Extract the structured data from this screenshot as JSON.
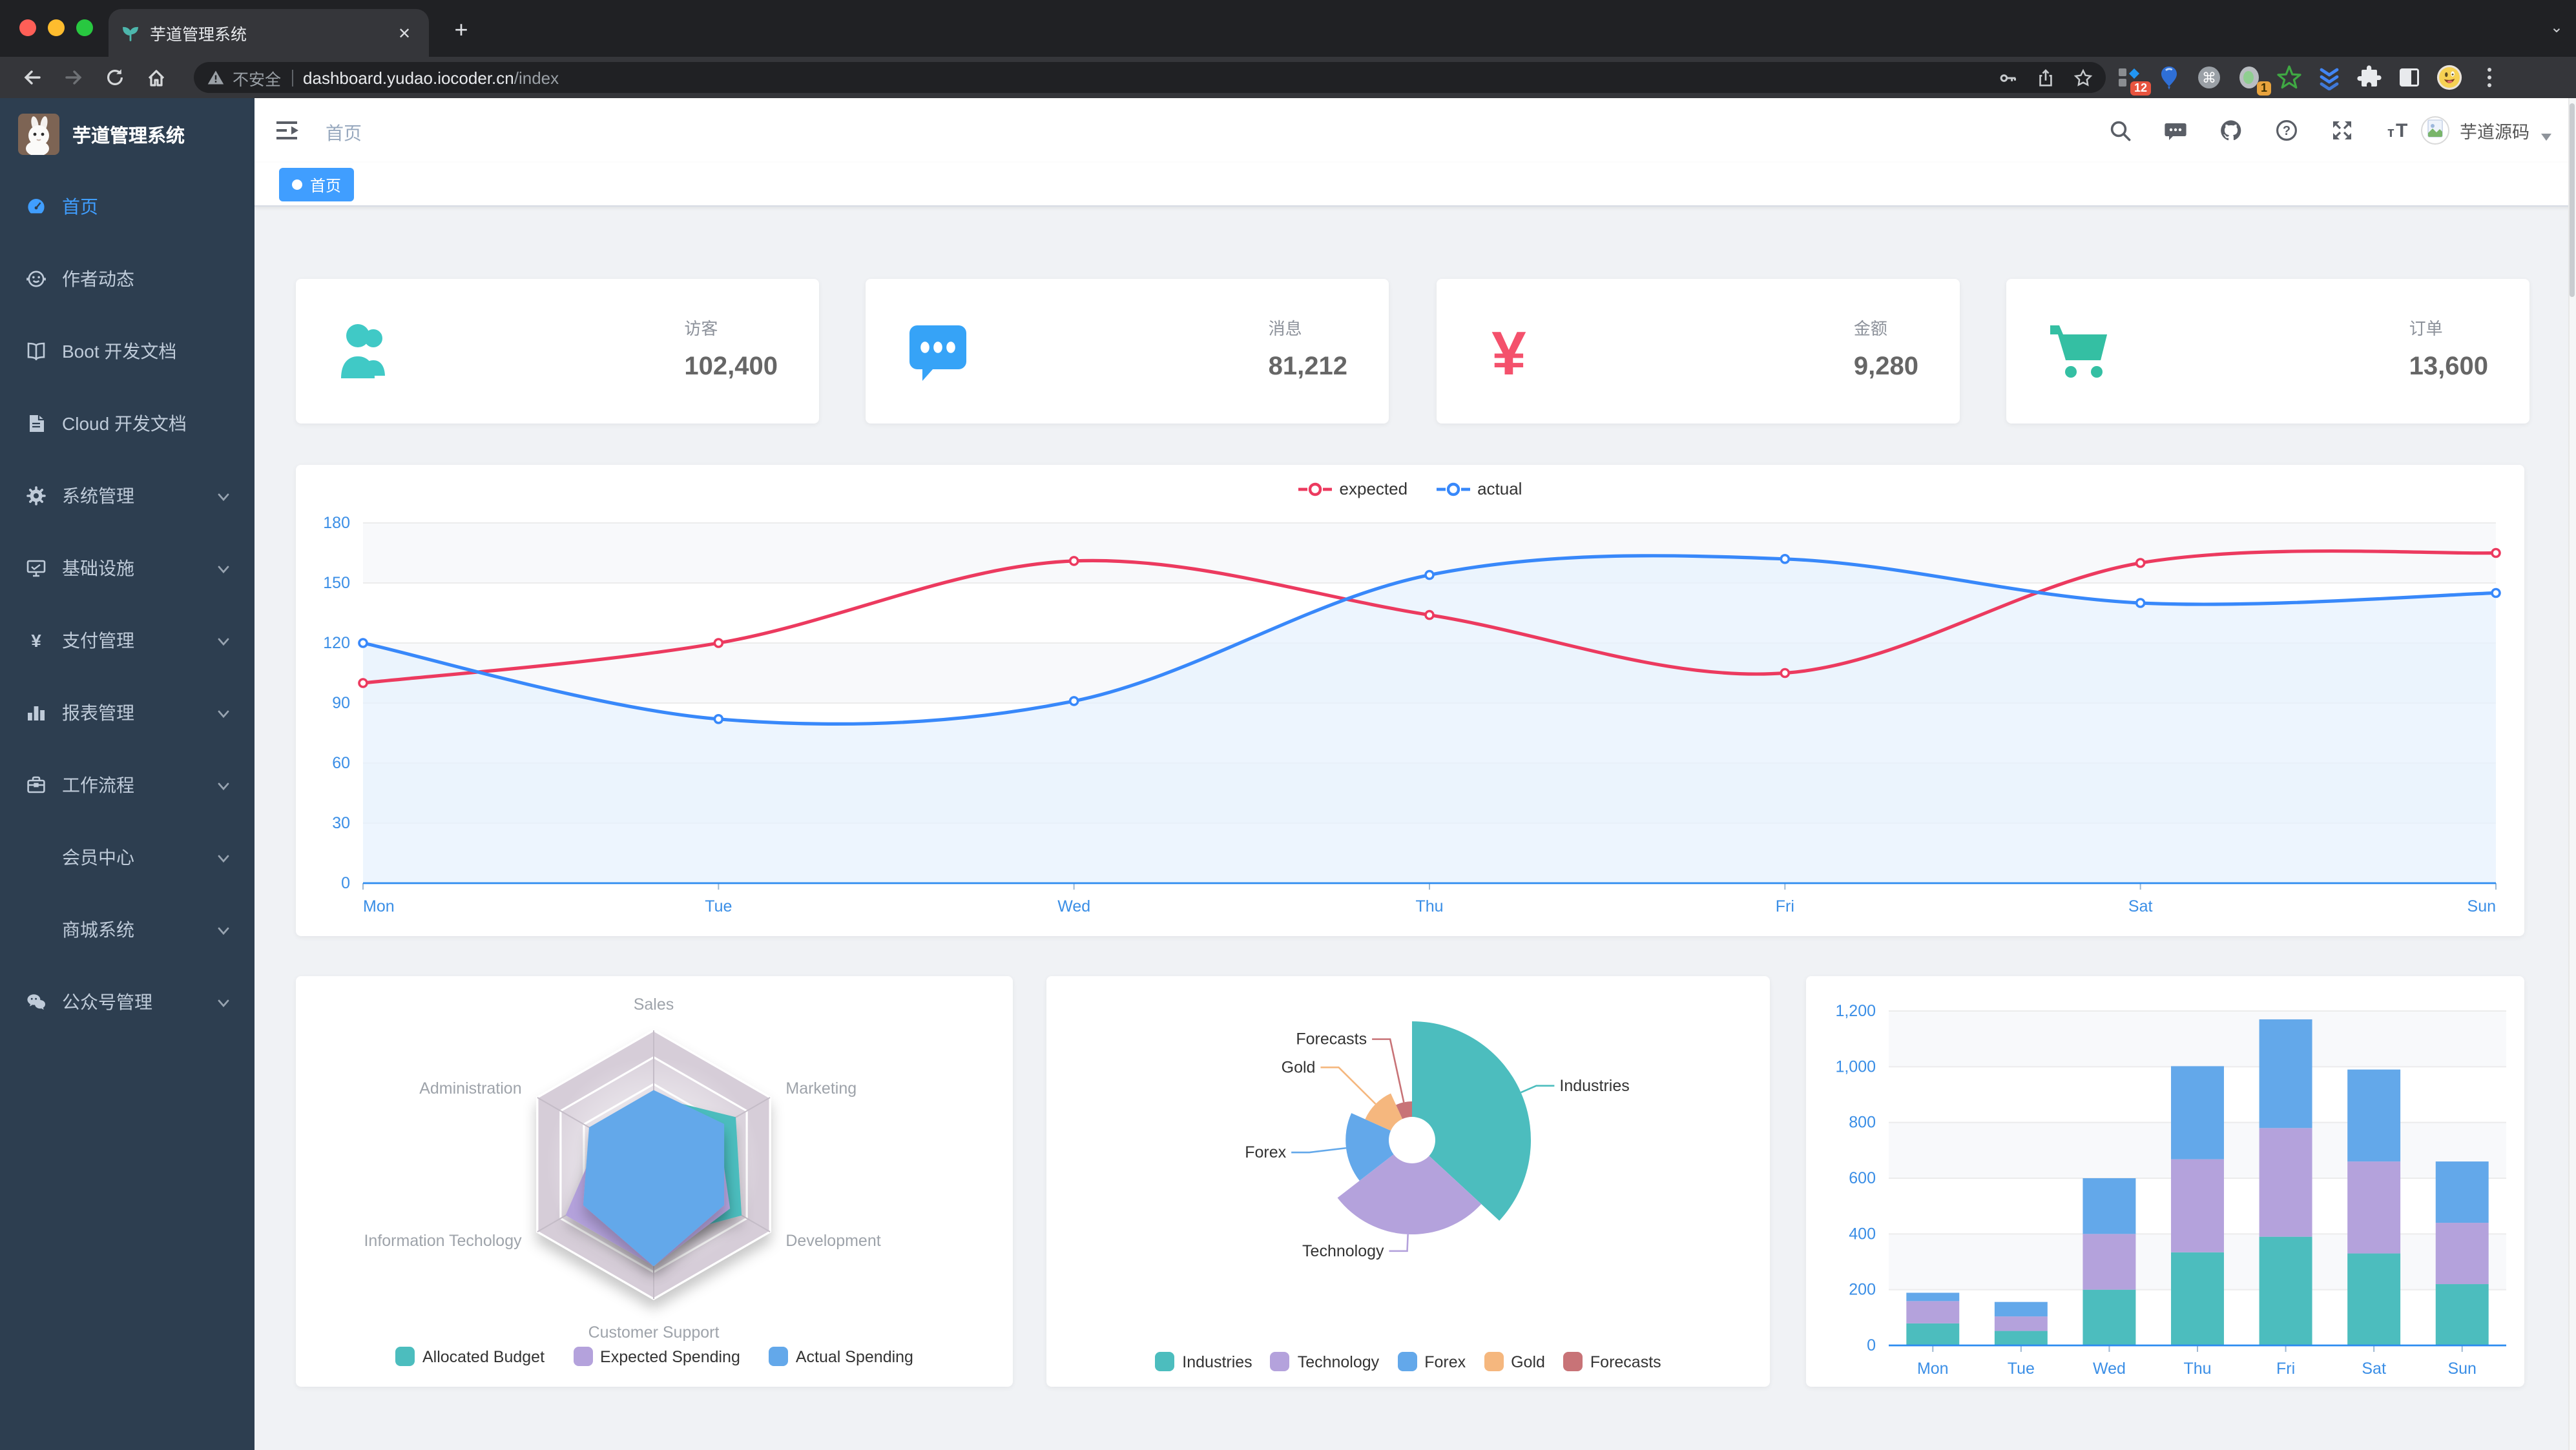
{
  "browser": {
    "tab": {
      "favicon": "seedling-icon",
      "title": "芋道管理系统",
      "close_glyph": "✕"
    },
    "new_tab_glyph": "+",
    "address": {
      "security_label": "不安全",
      "host": "dashboard.yudao.iocoder.cn",
      "path": "/index",
      "right_icons": [
        "key-icon",
        "share-icon",
        "bookmark-star-icon"
      ]
    },
    "nav_icons": [
      "back-icon",
      "forward-icon",
      "reload-icon",
      "home-icon"
    ],
    "extensions": [
      {
        "icon": "workspace-extension-icon",
        "badge": "12"
      },
      {
        "icon": "balloon-extension-icon",
        "badge": null
      },
      {
        "icon": "command-extension-icon",
        "badge": null
      },
      {
        "icon": "tab-counter-extension-icon",
        "badge": "1"
      },
      {
        "icon": "green-star-extension-icon",
        "badge": null
      },
      {
        "icon": "chevrons-extension-icon",
        "badge": null
      }
    ]
  },
  "sidebar": {
    "logo_title": "芋道管理系统",
    "items": [
      {
        "label": "首页",
        "icon": "dashboard-icon",
        "active": true,
        "expandable": false
      },
      {
        "label": "作者动态",
        "icon": "people-icon",
        "active": false,
        "expandable": false
      },
      {
        "label": "Boot 开发文档",
        "icon": "book-icon",
        "active": false,
        "expandable": false
      },
      {
        "label": "Cloud 开发文档",
        "icon": "document-icon",
        "active": false,
        "expandable": false
      },
      {
        "label": "系统管理",
        "icon": "gear-icon",
        "active": false,
        "expandable": true
      },
      {
        "label": "基础设施",
        "icon": "monitor-icon",
        "active": false,
        "expandable": true
      },
      {
        "label": "支付管理",
        "icon": "yen-icon",
        "active": false,
        "expandable": true
      },
      {
        "label": "报表管理",
        "icon": "bar-chart-icon",
        "active": false,
        "expandable": true
      },
      {
        "label": "工作流程",
        "icon": "briefcase-icon",
        "active": false,
        "expandable": true
      },
      {
        "label": "会员中心",
        "icon": null,
        "active": false,
        "expandable": true
      },
      {
        "label": "商城系统",
        "icon": null,
        "active": false,
        "expandable": true
      },
      {
        "label": "公众号管理",
        "icon": "wechat-icon",
        "active": false,
        "expandable": true
      }
    ]
  },
  "navbar": {
    "breadcrumb": "首页",
    "icons": [
      "search-icon",
      "message-icon",
      "github-icon",
      "question-icon",
      "fullscreen-icon",
      "font-size-icon"
    ],
    "user_name": "芋道源码"
  },
  "tags": [
    {
      "label": "首页",
      "active": true
    }
  ],
  "cards": [
    {
      "title": "访客",
      "value": "102,400",
      "icon": "peoples-icon",
      "color": "#40c9c6"
    },
    {
      "title": "消息",
      "value": "81,212",
      "icon": "bubble-icon",
      "color": "#36a3f7"
    },
    {
      "title": "金额",
      "value": "9,280",
      "icon": "money-icon",
      "color": "#f4516c"
    },
    {
      "title": "订单",
      "value": "13,600",
      "icon": "shopping-icon",
      "color": "#34bfa3"
    }
  ],
  "chart_data": [
    {
      "id": "weekly-activity-line",
      "type": "line",
      "x": [
        "Mon",
        "Tue",
        "Wed",
        "Thu",
        "Fri",
        "Sat",
        "Sun"
      ],
      "ylim": [
        0,
        180
      ],
      "ytick": 30,
      "legend_position": "top-center",
      "axis_label_color": "#3a8ee6",
      "series": [
        {
          "name": "expected",
          "color": "#ec3a5f",
          "values": [
            100,
            120,
            161,
            134,
            105,
            160,
            165
          ]
        },
        {
          "name": "actual",
          "color": "#3888fa",
          "area_color": "#f3f8ff",
          "values": [
            120,
            82,
            91,
            154,
            162,
            140,
            145
          ]
        }
      ]
    },
    {
      "id": "budget-radar",
      "type": "radar",
      "legend_position": "bottom-center",
      "indicators": [
        {
          "name": "Sales",
          "max": 10000
        },
        {
          "name": "Administration",
          "max": 20000
        },
        {
          "name": "Information Techology",
          "max": 20000
        },
        {
          "name": "Customer Support",
          "max": 20000
        },
        {
          "name": "Development",
          "max": 20000
        },
        {
          "name": "Marketing",
          "max": 20000
        }
      ],
      "series": [
        {
          "name": "Allocated Budget",
          "color": "#4cbdbe",
          "values": [
            5000,
            7000,
            12000,
            11000,
            15000,
            14000
          ]
        },
        {
          "name": "Expected Spending",
          "color": "#b4a2dc",
          "values": [
            4000,
            9000,
            15000,
            15000,
            13000,
            11000
          ]
        },
        {
          "name": "Actual Spending",
          "color": "#63a8ea",
          "values": [
            5500,
            11000,
            12000,
            15000,
            12000,
            12000
          ]
        }
      ]
    },
    {
      "id": "category-rose-pie",
      "type": "pie",
      "rose": true,
      "legend_position": "bottom",
      "items": [
        {
          "name": "Industries",
          "value": 320,
          "color": "#4cbdbe"
        },
        {
          "name": "Technology",
          "value": 240,
          "color": "#b4a2dc"
        },
        {
          "name": "Forex",
          "value": 149,
          "color": "#63a8ea"
        },
        {
          "name": "Gold",
          "value": 100,
          "color": "#f5b77e"
        },
        {
          "name": "Forecasts",
          "value": 59,
          "color": "#c87377"
        }
      ]
    },
    {
      "id": "weekly-stacked-bar",
      "type": "bar",
      "stacked": true,
      "categories": [
        "Mon",
        "Tue",
        "Wed",
        "Thu",
        "Fri",
        "Sat",
        "Sun"
      ],
      "ylim": [
        0,
        1200
      ],
      "ytick": 200,
      "axis_label_color": "#3a8ee6",
      "series": [
        {
          "name": "",
          "color": "#4cbdbe",
          "values": [
            79,
            52,
            200,
            334,
            390,
            330,
            220
          ]
        },
        {
          "name": "",
          "color": "#b4a2dc",
          "values": [
            80,
            52,
            200,
            334,
            390,
            330,
            220
          ]
        },
        {
          "name": "",
          "color": "#63a8ea",
          "values": [
            30,
            52,
            200,
            334,
            390,
            330,
            220
          ]
        }
      ]
    }
  ]
}
